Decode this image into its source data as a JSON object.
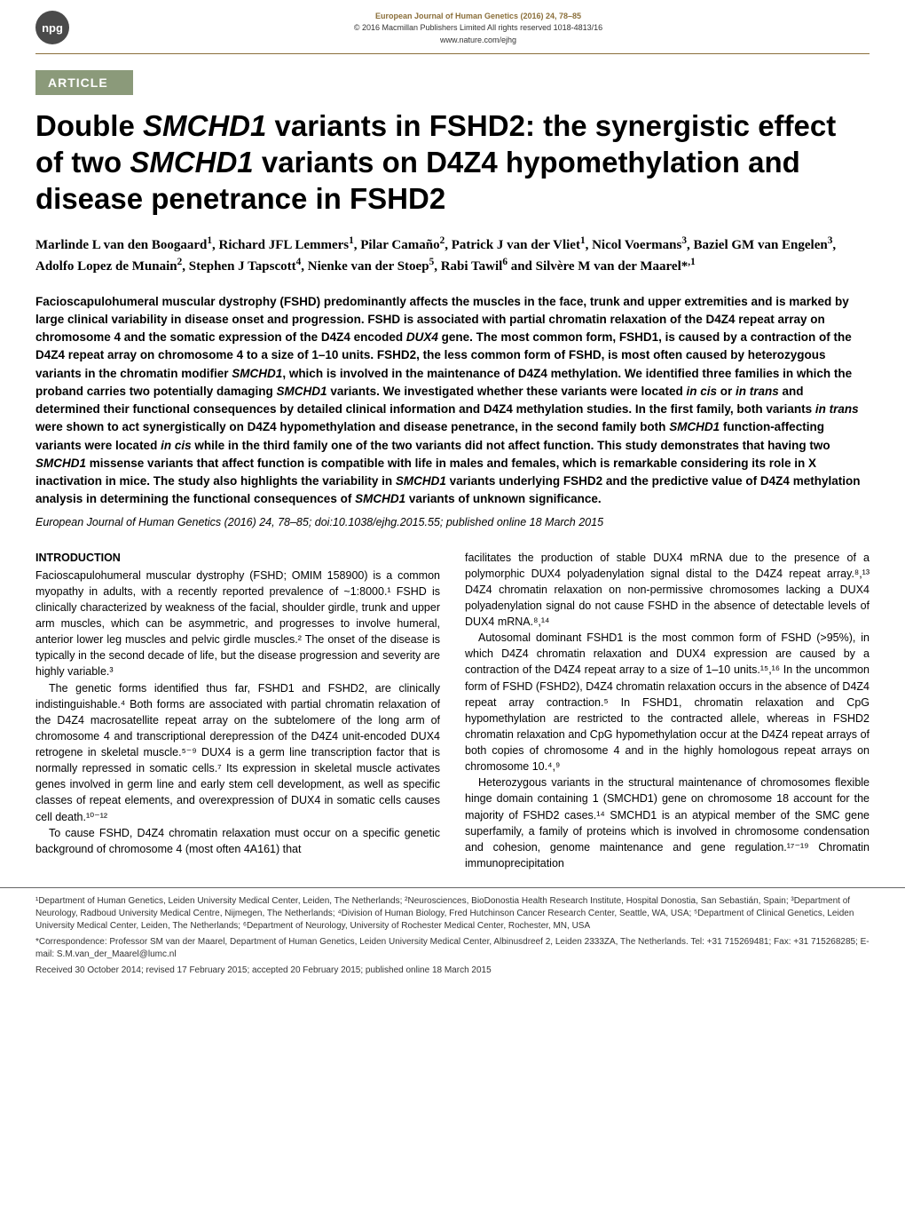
{
  "header": {
    "badge": "npg",
    "journal_line": "European Journal of Human Genetics (2016) 24, 78–85",
    "copyright_line": "© 2016 Macmillan Publishers Limited  All rights reserved 1018-4813/16",
    "url": "www.nature.com/ejhg"
  },
  "article_tag": "ARTICLE",
  "title_parts": {
    "p1": "Double ",
    "i1": "SMCHD1",
    "p2": " variants in FSHD2: the synergistic effect of two ",
    "i2": "SMCHD1",
    "p3": " variants on D4Z4 hypomethylation and disease penetrance in FSHD2"
  },
  "authors_html": "Marlinde L van den Boogaard<sup>1</sup>, Richard JFL Lemmers<sup>1</sup>, Pilar Camaño<sup>2</sup>, Patrick J van der Vliet<sup>1</sup>, Nicol Voermans<sup>3</sup>, Baziel GM van Engelen<sup>3</sup>, Adolfo Lopez de Munain<sup>2</sup>, Stephen J Tapscott<sup>4</sup>, Nienke van der Stoep<sup>5</sup>, Rabi Tawil<sup>6</sup> and Silvère M van der Maarel*<sup>,1</sup>",
  "abstract": "Facioscapulohumeral muscular dystrophy (FSHD) predominantly affects the muscles in the face, trunk and upper extremities and is marked by large clinical variability in disease onset and progression. FSHD is associated with partial chromatin relaxation of the D4Z4 repeat array on chromosome 4 and the somatic expression of the D4Z4 encoded DUX4 gene. The most common form, FSHD1, is caused by a contraction of the D4Z4 repeat array on chromosome 4 to a size of 1–10 units. FSHD2, the less common form of FSHD, is most often caused by heterozygous variants in the chromatin modifier SMCHD1, which is involved in the maintenance of D4Z4 methylation. We identified three families in which the proband carries two potentially damaging SMCHD1 variants. We investigated whether these variants were located in cis or in trans and determined their functional consequences by detailed clinical information and D4Z4 methylation studies. In the first family, both variants in trans were shown to act synergistically on D4Z4 hypomethylation and disease penetrance, in the second family both SMCHD1 function-affecting variants were located in cis while in the third family one of the two variants did not affect function. This study demonstrates that having two SMCHD1 missense variants that affect function is compatible with life in males and females, which is remarkable considering its role in X inactivation in mice. The study also highlights the variability in SMCHD1 variants underlying FSHD2 and the predictive value of D4Z4 methylation analysis in determining the functional consequences of SMCHD1 variants of unknown significance.",
  "citation": "European Journal of Human Genetics (2016) 24, 78–85; doi:10.1038/ejhg.2015.55; published online 18 March 2015",
  "intro_heading": "INTRODUCTION",
  "intro_left": [
    "Facioscapulohumeral muscular dystrophy (FSHD; OMIM 158900) is a common myopathy in adults, with a recently reported prevalence of ~1:8000.¹ FSHD is clinically characterized by weakness of the facial, shoulder girdle, trunk and upper arm muscles, which can be asymmetric, and progresses to involve humeral, anterior lower leg muscles and pelvic girdle muscles.² The onset of the disease is typically in the second decade of life, but the disease progression and severity are highly variable.³",
    "The genetic forms identified thus far, FSHD1 and FSHD2, are clinically indistinguishable.⁴ Both forms are associated with partial chromatin relaxation of the D4Z4 macrosatellite repeat array on the subtelomere of the long arm of chromosome 4 and transcriptional derepression of the D4Z4 unit-encoded DUX4 retrogene in skeletal muscle.⁵⁻⁹ DUX4 is a germ line transcription factor that is normally repressed in somatic cells.⁷ Its expression in skeletal muscle activates genes involved in germ line and early stem cell development, as well as specific classes of repeat elements, and overexpression of DUX4 in somatic cells causes cell death.¹⁰⁻¹²",
    "To cause FSHD, D4Z4 chromatin relaxation must occur on a specific genetic background of chromosome 4 (most often 4A161) that"
  ],
  "intro_right": [
    "facilitates the production of stable DUX4 mRNA due to the presence of a polymorphic DUX4 polyadenylation signal distal to the D4Z4 repeat array.⁸,¹³ D4Z4 chromatin relaxation on non-permissive chromosomes lacking a DUX4 polyadenylation signal do not cause FSHD in the absence of detectable levels of DUX4 mRNA.⁸,¹⁴",
    "Autosomal dominant FSHD1 is the most common form of FSHD (>95%), in which D4Z4 chromatin relaxation and DUX4 expression are caused by a contraction of the D4Z4 repeat array to a size of 1–10 units.¹⁵,¹⁶ In the uncommon form of FSHD (FSHD2), D4Z4 chromatin relaxation occurs in the absence of D4Z4 repeat array contraction.⁵ In FSHD1, chromatin relaxation and CpG hypomethylation are restricted to the contracted allele, whereas in FSHD2 chromatin relaxation and CpG hypomethylation occur at the D4Z4 repeat arrays of both copies of chromosome 4 and in the highly homologous repeat arrays on chromosome 10.⁴,⁹",
    "Heterozygous variants in the structural maintenance of chromosomes flexible hinge domain containing 1 (SMCHD1) gene on chromosome 18 account for the majority of FSHD2 cases.¹⁴ SMCHD1 is an atypical member of the SMC gene superfamily, a family of proteins which is involved in chromosome condensation and cohesion, genome maintenance and gene regulation.¹⁷⁻¹⁹ Chromatin immunoprecipitation"
  ],
  "affiliations": [
    "¹Department of Human Genetics, Leiden University Medical Center, Leiden, The Netherlands; ²Neurosciences, BioDonostia Health Research Institute, Hospital Donostia, San Sebastián, Spain; ³Department of Neurology, Radboud University Medical Centre, Nijmegen, The Netherlands; ⁴Division of Human Biology, Fred Hutchinson Cancer Research Center, Seattle, WA, USA; ⁵Department of Clinical Genetics, Leiden University Medical Center, Leiden, The Netherlands; ⁶Department of Neurology, University of Rochester Medical Center, Rochester, MN, USA",
    "*Correspondence: Professor SM van der Maarel, Department of Human Genetics, Leiden University Medical Center, Albinusdreef 2, Leiden 2333ZA, The Netherlands. Tel: +31 715269481; Fax: +31 715268285; E-mail: S.M.van_der_Maarel@lumc.nl",
    "Received 30 October 2014; revised 17 February 2015; accepted 20 February 2015; published online 18 March 2015"
  ]
}
